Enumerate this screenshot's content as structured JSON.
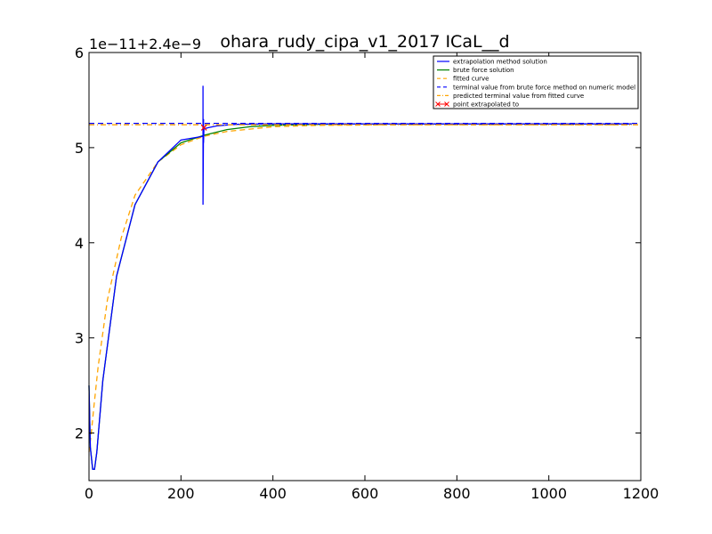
{
  "chart_data": {
    "type": "line",
    "title": "ohara_rudy_cipa_v1_2017 ICaL__d",
    "offset_label": "1e−11+2.4e−9",
    "xlabel": "",
    "ylabel": "",
    "xlim": [
      0,
      1200
    ],
    "ylim": [
      1.5,
      6
    ],
    "x_ticks": [
      "0",
      "200",
      "400",
      "600",
      "800",
      "1000",
      "1200"
    ],
    "y_ticks": [
      "2",
      "3",
      "4",
      "5",
      "6"
    ],
    "grid": false,
    "legend_position": "top-right",
    "series": [
      {
        "name": "extrapolation method solution",
        "color": "#0000ff",
        "style": "solid",
        "x": [
          0,
          3,
          8,
          12,
          17,
          30,
          60,
          100,
          150,
          200,
          248,
          248,
          248,
          249,
          249,
          250,
          252,
          260,
          280,
          320,
          400,
          500,
          600,
          800,
          1000,
          1180
        ],
        "y": [
          2.5,
          1.85,
          1.62,
          1.62,
          1.8,
          2.55,
          3.65,
          4.4,
          4.85,
          5.08,
          5.12,
          5.65,
          4.4,
          5.3,
          5.05,
          5.22,
          5.2,
          5.21,
          5.23,
          5.245,
          5.25,
          5.25,
          5.25,
          5.25,
          5.25,
          5.25
        ]
      },
      {
        "name": "brute force solution",
        "color": "#008000",
        "style": "solid",
        "x": [
          0,
          3,
          8,
          12,
          17,
          30,
          60,
          100,
          150,
          200,
          250,
          300,
          350,
          400,
          500,
          600,
          700,
          800,
          1000,
          1180
        ],
        "y": [
          2.5,
          1.85,
          1.62,
          1.62,
          1.8,
          2.55,
          3.65,
          4.4,
          4.85,
          5.05,
          5.13,
          5.19,
          5.22,
          5.235,
          5.245,
          5.25,
          5.25,
          5.25,
          5.25,
          5.25
        ]
      },
      {
        "name": "fitted curve",
        "color": "#ffa500",
        "style": "dashed",
        "x": [
          0,
          5,
          10,
          20,
          40,
          70,
          100,
          150,
          200,
          250,
          300,
          400,
          500,
          700,
          1000,
          1180
        ],
        "y": [
          1.8,
          2.0,
          2.25,
          2.7,
          3.4,
          4.05,
          4.5,
          4.85,
          5.03,
          5.12,
          5.17,
          5.22,
          5.235,
          5.24,
          5.24,
          5.24
        ]
      },
      {
        "name": "terminal value from brute force method on numeric model",
        "color": "#0000ff",
        "style": "dashed",
        "x": [
          0,
          1200
        ],
        "y": [
          5.255,
          5.255
        ]
      },
      {
        "name": "predicted terminal value from fitted curve",
        "color": "#ffa500",
        "style": "dashdot",
        "x": [
          0,
          1200
        ],
        "y": [
          5.24,
          5.24
        ]
      },
      {
        "name": "point extrapolated to",
        "color": "#ff0000",
        "style": "marker",
        "x": [
          250
        ],
        "y": [
          5.21
        ]
      }
    ]
  }
}
